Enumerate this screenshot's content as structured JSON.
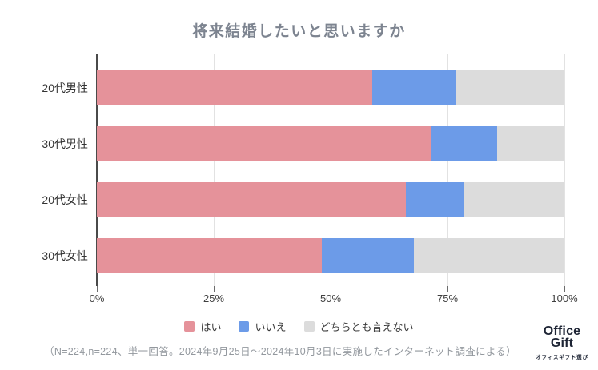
{
  "title": "将来結婚したいと思いますか",
  "chart_data": {
    "type": "bar",
    "stacked": true,
    "orientation": "horizontal",
    "title": "将来結婚したいと思いますか",
    "categories": [
      "20代男性",
      "30代男性",
      "20代女性",
      "30代女性"
    ],
    "series": [
      {
        "name": "はい",
        "color": "#e5929a",
        "values": [
          58.9,
          71.4,
          66.1,
          48.2
        ]
      },
      {
        "name": "いいえ",
        "color": "#6c9be8",
        "values": [
          17.9,
          14.3,
          12.5,
          19.6
        ]
      },
      {
        "name": "どちらとも言えない",
        "color": "#dcdcdc",
        "values": [
          23.2,
          14.3,
          21.4,
          32.2
        ]
      }
    ],
    "xlim": [
      0,
      100
    ],
    "x_tick_labels": [
      "0%",
      "25%",
      "50%",
      "75%",
      "100%"
    ],
    "x_tick_positions": [
      0,
      25,
      50,
      75,
      100
    ],
    "grid": true,
    "legend_position": "bottom"
  },
  "footer": {
    "note": "（N=224,n=224、単一回答。2024年9月25日～2024年10月3日に実施したインターネット調査による）"
  },
  "logo": {
    "line1": "Office",
    "line2": "Gift",
    "tagline": "オフィスギフト選び"
  },
  "colors": {
    "title_text": "#7d8490",
    "axis_line": "#4a4a4a",
    "gridline": "#e2e2e2",
    "category_text": "#333333",
    "note_text": "#93989e",
    "logo_text": "#1d2434"
  }
}
